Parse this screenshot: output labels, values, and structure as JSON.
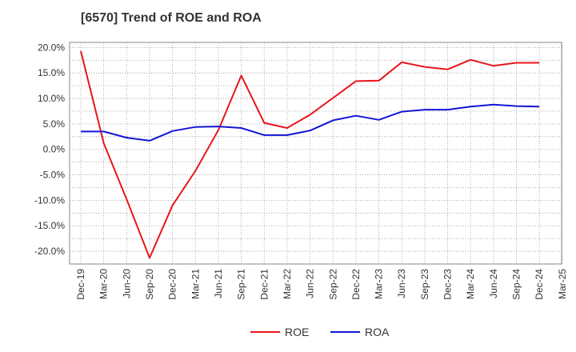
{
  "chart_data": {
    "type": "line",
    "title": "[6570]  Trend of ROE and ROA",
    "xlabel": "",
    "ylabel": "",
    "x": [
      "Dec-19",
      "Mar-20",
      "Jun-20",
      "Sep-20",
      "Dec-20",
      "Mar-21",
      "Jun-21",
      "Sep-21",
      "Dec-21",
      "Mar-22",
      "Jun-22",
      "Sep-22",
      "Dec-22",
      "Mar-23",
      "Jun-23",
      "Sep-23",
      "Dec-23",
      "Mar-24",
      "Jun-24",
      "Sep-24",
      "Dec-24",
      "Mar-25"
    ],
    "ylim": [
      -22.5,
      21.0
    ],
    "yticks": [
      20,
      15,
      10,
      5,
      0,
      -5,
      -10,
      -15,
      -20
    ],
    "ytick_labels": [
      "20.0%",
      "15.0%",
      "10.0%",
      "5.0%",
      "0.0%",
      "-5.0%",
      "-10.0%",
      "-15.0%",
      "-20.0%"
    ],
    "grid": true,
    "legend_position": "bottom-center",
    "series": [
      {
        "name": "ROE",
        "color": "#e8151b",
        "values": [
          19.3,
          1.2,
          -9.8,
          -21.3,
          -11.0,
          -4.2,
          3.8,
          14.5,
          5.2,
          4.2,
          6.8,
          10.1,
          13.4,
          13.5,
          17.1,
          16.2,
          15.7,
          17.6,
          16.4,
          17.0,
          17.0,
          null
        ]
      },
      {
        "name": "ROA",
        "color": "#1515d6",
        "values": [
          3.5,
          3.5,
          2.3,
          1.7,
          3.6,
          4.4,
          4.5,
          4.2,
          2.8,
          2.8,
          3.7,
          5.7,
          6.6,
          5.8,
          7.4,
          7.8,
          7.8,
          8.4,
          8.8,
          8.5,
          8.4,
          null
        ]
      }
    ]
  }
}
